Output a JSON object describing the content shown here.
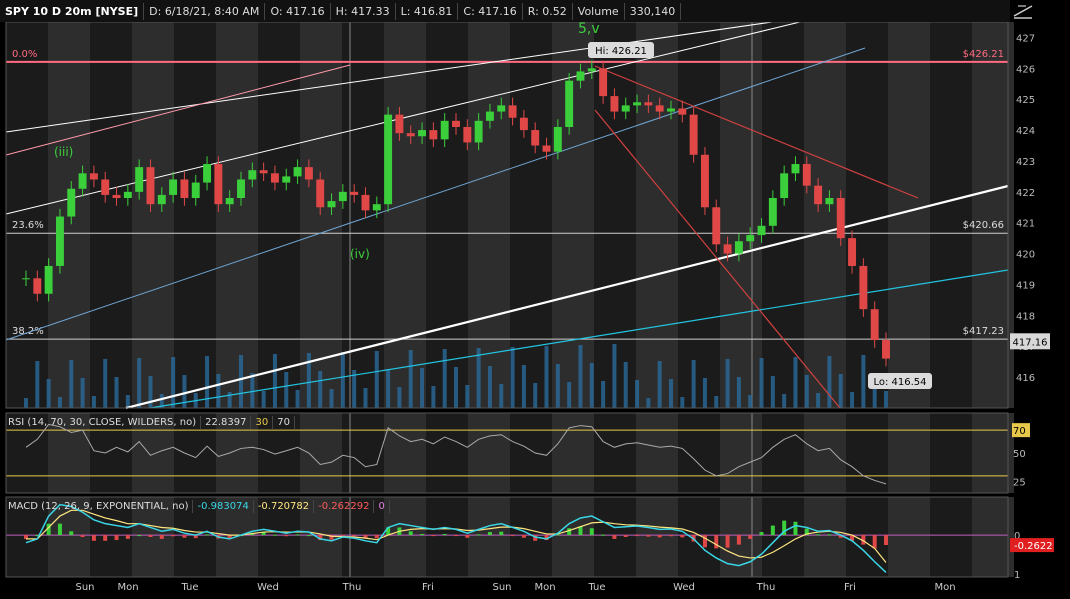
{
  "header": {
    "symbol": "SPY 10 D 20m [NYSE]",
    "datetime": "D: 6/18/21, 8:40 AM",
    "open": "O: 417.16",
    "high": "H: 417.33",
    "low": "L: 416.81",
    "close": "C: 417.16",
    "range": "R: 0.52",
    "volume_label": "Volume",
    "volume_value": "330,140"
  },
  "colors": {
    "up": "#3ccf3c",
    "down": "#e04848",
    "volume": "#2a6a9a",
    "fib": "#ff6b81",
    "rsi_line": "#aaaaaa",
    "macd_line": "#3ad6e6",
    "signal_line": "#ffe680"
  },
  "chart_data": [
    {
      "type": "line",
      "title": "SPY 10 D 20m [NYSE]",
      "x_labels": [
        "Sun",
        "Mon",
        "Tue",
        "Wed",
        "Thu",
        "Fri",
        "Sun",
        "Mon",
        "Tue",
        "Wed",
        "Thu",
        "Fri",
        "Mon"
      ],
      "ylim": [
        415,
        427.5
      ],
      "y_ticks": [
        416,
        417,
        418,
        419,
        420,
        421,
        422,
        423,
        424,
        425,
        426,
        427
      ],
      "series": [
        {
          "values": [
            419.2,
            418.7,
            419.6,
            421.2,
            422.1,
            422.6,
            422.4,
            421.9,
            421.8,
            422.0,
            422.8,
            421.6,
            421.9,
            422.4,
            421.8,
            422.3,
            422.9,
            421.6,
            421.8,
            422.4,
            422.7,
            422.6,
            422.3,
            422.5,
            422.8,
            422.4,
            421.5,
            421.7,
            422.0,
            421.9,
            421.4,
            421.6,
            424.5,
            423.9,
            423.8,
            424.0,
            423.7,
            424.3,
            424.1,
            423.6,
            424.3,
            424.6,
            424.8,
            424.4,
            424.0,
            423.5,
            423.3,
            424.1,
            425.6,
            425.9,
            426.0,
            425.1,
            424.6,
            424.8,
            424.9,
            424.8,
            424.6,
            424.7,
            424.5,
            423.2,
            421.5,
            420.3,
            420.0,
            420.4,
            420.6,
            420.9,
            421.8,
            422.6,
            422.9,
            422.2,
            421.6,
            421.8,
            420.5,
            419.6,
            418.2,
            417.2,
            416.6
          ]
        }
      ],
      "annotations": [
        {
          "text": "5,v"
        },
        {
          "text": "(iii)"
        },
        {
          "text": "(iv)"
        },
        {
          "text": "Hi: 426.21"
        },
        {
          "text": "Lo: 416.54"
        }
      ],
      "fib_levels": [
        {
          "label": "0.0%",
          "price_label": "$426.21",
          "value": 426.21
        },
        {
          "label": "23.6%",
          "price_label": "$420.66",
          "value": 420.66
        },
        {
          "label": "38.2%",
          "price_label": "$417.23",
          "value": 417.23
        }
      ],
      "last_price_label": "417.16"
    },
    {
      "type": "line",
      "title": "RSI (14, 70, 30, CLOSE, WILDERS, no)",
      "value_label": "22.8397",
      "levels": [
        "30",
        "70"
      ],
      "ylim": [
        15,
        85
      ],
      "y_ticks": [
        "70",
        "50",
        "25"
      ],
      "series": [
        {
          "values": [
            55,
            62,
            75,
            73,
            68,
            70,
            52,
            50,
            55,
            51,
            60,
            48,
            52,
            55,
            50,
            46,
            56,
            47,
            50,
            54,
            55,
            53,
            49,
            52,
            55,
            50,
            40,
            42,
            48,
            46,
            38,
            40,
            72,
            65,
            60,
            62,
            58,
            64,
            60,
            55,
            62,
            65,
            66,
            60,
            56,
            50,
            48,
            58,
            72,
            74,
            73,
            60,
            55,
            58,
            59,
            57,
            55,
            56,
            54,
            45,
            35,
            30,
            32,
            38,
            42,
            46,
            55,
            62,
            66,
            58,
            52,
            54,
            44,
            38,
            30,
            26,
            23
          ]
        }
      ]
    },
    {
      "type": "line",
      "title": "MACD (12, 26, 9, EXPONENTIAL, no)",
      "values_shown": [
        "-0.983074",
        "-0.720782",
        "-0.262292",
        "0"
      ],
      "axis_labels": [
        "0",
        "-0.2622",
        "1"
      ],
      "ylim": [
        -1.1,
        1.0
      ],
      "series": [
        {
          "values": [
            -0.2,
            -0.1,
            0.5,
            0.8,
            0.75,
            0.6,
            0.4,
            0.3,
            0.25,
            0.2,
            0.3,
            0.2,
            0.1,
            0.15,
            0.05,
            0.0,
            0.1,
            -0.05,
            -0.1,
            0.0,
            0.1,
            0.15,
            0.1,
            0.05,
            0.1,
            0.08,
            -0.1,
            -0.15,
            -0.05,
            -0.08,
            -0.15,
            -0.2,
            0.2,
            0.3,
            0.25,
            0.2,
            0.15,
            0.2,
            0.15,
            0.05,
            0.15,
            0.25,
            0.3,
            0.2,
            0.1,
            -0.05,
            -0.1,
            0.05,
            0.3,
            0.45,
            0.5,
            0.35,
            0.2,
            0.22,
            0.24,
            0.2,
            0.15,
            0.16,
            0.1,
            -0.1,
            -0.4,
            -0.6,
            -0.75,
            -0.8,
            -0.7,
            -0.5,
            -0.2,
            0.1,
            0.25,
            0.2,
            0.1,
            0.12,
            0.0,
            -0.15,
            -0.4,
            -0.7,
            -0.98
          ]
        },
        {
          "values": [
            -0.1,
            -0.1,
            0.2,
            0.5,
            0.65,
            0.65,
            0.55,
            0.45,
            0.38,
            0.3,
            0.3,
            0.25,
            0.2,
            0.18,
            0.12,
            0.08,
            0.08,
            0.04,
            0.0,
            0.0,
            0.04,
            0.08,
            0.09,
            0.08,
            0.08,
            0.08,
            0.03,
            -0.03,
            -0.04,
            -0.05,
            -0.08,
            -0.12,
            0.0,
            0.1,
            0.15,
            0.17,
            0.16,
            0.17,
            0.16,
            0.12,
            0.13,
            0.17,
            0.21,
            0.21,
            0.17,
            0.1,
            0.03,
            0.03,
            0.12,
            0.22,
            0.32,
            0.34,
            0.3,
            0.27,
            0.26,
            0.24,
            0.21,
            0.19,
            0.16,
            0.07,
            -0.08,
            -0.25,
            -0.42,
            -0.55,
            -0.6,
            -0.58,
            -0.45,
            -0.28,
            -0.1,
            0.03,
            0.08,
            0.1,
            0.07,
            0.0,
            -0.15,
            -0.35,
            -0.72
          ]
        }
      ]
    }
  ],
  "rsi_header": {
    "name": "RSI (14, 70, 30, CLOSE, WILDERS, no)",
    "value": "22.8397",
    "lvl1": "30",
    "lvl2": "70"
  },
  "macd_header": {
    "name": "MACD (12, 26, 9, EXPONENTIAL, no)",
    "v1": "-0.983074",
    "v2": "-0.720782",
    "v3": "-0.262292",
    "v4": "0"
  },
  "icons": {
    "tool": "trend-line-icon"
  }
}
